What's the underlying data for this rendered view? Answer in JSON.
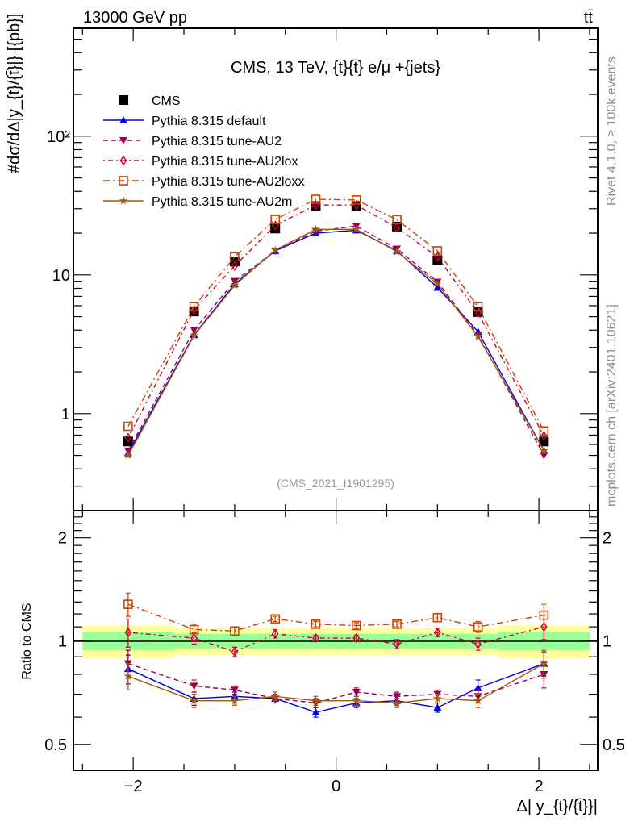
{
  "header": {
    "beam": "13000 GeV pp",
    "process": "tt̄"
  },
  "side_labels": {
    "rivet": "Rivet 4.1.0, ≥ 100k events",
    "mcplots": "mcplots.cern.ch [arXiv:2401.10621]"
  },
  "chart_data": [
    {
      "type": "line",
      "panel": "main",
      "title": "CMS, 13 TeV, {t}{t̄} e/μ +{jets}",
      "watermark": "(CMS_2021_I1901295)",
      "ylabel": "#dσ/dΔ|y_{t}/{t̄}|} [{pb}]",
      "xlabel": "Δ| y_{t}/{t̄}}|",
      "yscale": "log",
      "xlim": [
        -2.59,
        2.58
      ],
      "ylim": [
        0.2,
        600
      ],
      "y_ticks": [
        {
          "value": 1,
          "label": "1"
        },
        {
          "value": 10,
          "label": "10"
        },
        {
          "value": 100,
          "label": "10²"
        }
      ],
      "x": [
        -2.05,
        -1.4,
        -1.0,
        -0.6,
        -0.2,
        0.2,
        0.6,
        1.0,
        1.4,
        2.05
      ],
      "legend_position": "top-left",
      "series": [
        {
          "name": "CMS",
          "color": "#000000",
          "marker": "square",
          "line": "none",
          "values": [
            0.63,
            5.45,
            12.5,
            21.6,
            31.3,
            31.3,
            22.3,
            12.7,
            5.4,
            0.63
          ]
        },
        {
          "name": "Pythia 8.315 default",
          "color": "#0000dd",
          "marker": "triangle-up",
          "line": "solid",
          "values": [
            0.52,
            3.7,
            8.6,
            14.9,
            20.0,
            21.0,
            14.9,
            8.1,
            3.9,
            0.54
          ]
        },
        {
          "name": "Pythia 8.315 tune-AU2",
          "color": "#990050",
          "marker": "triangle-down",
          "line": "dashed",
          "values": [
            0.54,
            4.0,
            9.0,
            14.9,
            20.7,
            22.5,
            15.4,
            8.9,
            3.7,
            0.5
          ]
        },
        {
          "name": "Pythia 8.315 tune-AU2lox",
          "color": "#cc0033",
          "marker": "diamond-open",
          "line": "dotdash",
          "values": [
            0.67,
            5.6,
            11.6,
            22.7,
            31.9,
            31.9,
            21.9,
            13.5,
            5.3,
            0.69
          ]
        },
        {
          "name": "Pythia 8.315 tune-AU2loxx",
          "color": "#cc4400",
          "marker": "square-open",
          "line": "dashdot",
          "values": [
            0.81,
            5.9,
            13.5,
            25.1,
            35.1,
            34.7,
            25.0,
            14.9,
            5.9,
            0.75
          ]
        },
        {
          "name": "Pythia 8.315 tune-AU2m",
          "color": "#a05a10",
          "marker": "star",
          "line": "solid",
          "values": [
            0.5,
            3.65,
            8.4,
            15.1,
            21.3,
            21.3,
            14.7,
            8.6,
            3.6,
            0.54
          ]
        }
      ]
    },
    {
      "type": "line",
      "panel": "ratio",
      "ylabel": "Ratio to CMS",
      "xlabel": "Δ| y_{t}/{t̄}}|",
      "yscale": "log",
      "xlim": [
        -2.59,
        2.58
      ],
      "ylim": [
        0.42,
        2.4
      ],
      "y_ticks": [
        {
          "value": 0.5,
          "label": "0.5"
        },
        {
          "value": 1,
          "label": "1"
        },
        {
          "value": 2,
          "label": "2"
        }
      ],
      "x_ticks": [
        {
          "value": -2,
          "label": "−2"
        },
        {
          "value": 0,
          "label": "0"
        },
        {
          "value": 2,
          "label": "2"
        }
      ],
      "x": [
        -2.05,
        -1.4,
        -1.0,
        -0.6,
        -0.2,
        0.2,
        0.6,
        1.0,
        1.4,
        2.05
      ],
      "bin_edges": [
        -2.5,
        -1.6,
        -1.2,
        -0.8,
        -0.4,
        0.0,
        0.4,
        0.8,
        1.2,
        1.6,
        2.5
      ],
      "bands": {
        "stat_color": "#99ff99",
        "total_color": "#ffff99",
        "stat": [
          0.06,
          0.05,
          0.05,
          0.05,
          0.05,
          0.05,
          0.05,
          0.05,
          0.05,
          0.06
        ],
        "total": [
          0.11,
          0.09,
          0.09,
          0.09,
          0.09,
          0.09,
          0.09,
          0.09,
          0.09,
          0.11
        ]
      },
      "series": [
        {
          "name": "Pythia 8.315 default",
          "color": "#0000dd",
          "marker": "triangle-up",
          "line": "solid",
          "values": [
            0.83,
            0.68,
            0.69,
            0.68,
            0.62,
            0.66,
            0.67,
            0.64,
            0.73,
            0.86
          ],
          "errors": [
            0.08,
            0.03,
            0.02,
            0.02,
            0.02,
            0.02,
            0.02,
            0.02,
            0.04,
            0.07
          ]
        },
        {
          "name": "Pythia 8.315 tune-AU2",
          "color": "#990050",
          "marker": "triangle-down",
          "line": "dashed",
          "values": [
            0.86,
            0.74,
            0.72,
            0.68,
            0.66,
            0.71,
            0.69,
            0.7,
            0.69,
            0.8
          ],
          "errors": [
            0.08,
            0.03,
            0.02,
            0.02,
            0.02,
            0.02,
            0.02,
            0.02,
            0.03,
            0.07
          ]
        },
        {
          "name": "Pythia 8.315 tune-AU2lox",
          "color": "#cc0033",
          "marker": "diamond-open",
          "line": "dotdash",
          "values": [
            1.06,
            1.02,
            0.93,
            1.05,
            1.02,
            1.02,
            0.98,
            1.06,
            0.98,
            1.1
          ],
          "errors": [
            0.1,
            0.04,
            0.03,
            0.03,
            0.02,
            0.02,
            0.03,
            0.03,
            0.04,
            0.09
          ]
        },
        {
          "name": "Pythia 8.315 tune-AU2loxx",
          "color": "#cc4400",
          "marker": "square-open",
          "line": "dashdot",
          "values": [
            1.28,
            1.08,
            1.07,
            1.16,
            1.12,
            1.11,
            1.12,
            1.17,
            1.1,
            1.19
          ],
          "errors": [
            0.1,
            0.04,
            0.03,
            0.02,
            0.02,
            0.02,
            0.02,
            0.03,
            0.04,
            0.09
          ]
        },
        {
          "name": "Pythia 8.315 tune-AU2m",
          "color": "#a05a10",
          "marker": "star",
          "line": "solid",
          "values": [
            0.79,
            0.67,
            0.67,
            0.69,
            0.67,
            0.67,
            0.66,
            0.68,
            0.67,
            0.86
          ],
          "errors": [
            0.07,
            0.03,
            0.02,
            0.02,
            0.02,
            0.02,
            0.02,
            0.02,
            0.03,
            0.08
          ]
        }
      ]
    }
  ]
}
